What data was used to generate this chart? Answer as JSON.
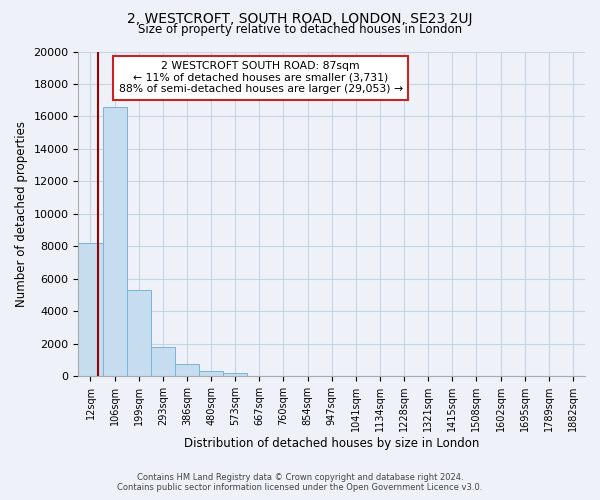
{
  "title": "2, WESTCROFT, SOUTH ROAD, LONDON, SE23 2UJ",
  "subtitle": "Size of property relative to detached houses in London",
  "xlabel": "Distribution of detached houses by size in London",
  "ylabel": "Number of detached properties",
  "footer_line1": "Contains HM Land Registry data © Crown copyright and database right 2024.",
  "footer_line2": "Contains public sector information licensed under the Open Government Licence v3.0.",
  "bar_labels": [
    "12sqm",
    "106sqm",
    "199sqm",
    "293sqm",
    "386sqm",
    "480sqm",
    "573sqm",
    "667sqm",
    "760sqm",
    "854sqm",
    "947sqm",
    "1041sqm",
    "1134sqm",
    "1228sqm",
    "1321sqm",
    "1415sqm",
    "1508sqm",
    "1602sqm",
    "1695sqm",
    "1789sqm",
    "1882sqm"
  ],
  "bar_values": [
    8200,
    16600,
    5300,
    1800,
    750,
    300,
    200,
    0,
    0,
    0,
    0,
    0,
    0,
    0,
    0,
    0,
    0,
    0,
    0,
    0,
    0
  ],
  "bar_color": "#c6ddf0",
  "bar_edge_color": "#7ab4d8",
  "property_line_color": "#990000",
  "annotation_title": "2 WESTCROFT SOUTH ROAD: 87sqm",
  "annotation_line1": "← 11% of detached houses are smaller (3,731)",
  "annotation_line2": "88% of semi-detached houses are larger (29,053) →",
  "annotation_box_color": "#ffffff",
  "annotation_box_edge": "#cc2222",
  "ylim": [
    0,
    20000
  ],
  "yticks": [
    0,
    2000,
    4000,
    6000,
    8000,
    10000,
    12000,
    14000,
    16000,
    18000,
    20000
  ],
  "background_color": "#eef2f8",
  "grid_color": "#c5d5e5",
  "num_bins": 21,
  "property_sqm": 87,
  "bin_min": 12,
  "bin_max": 106
}
